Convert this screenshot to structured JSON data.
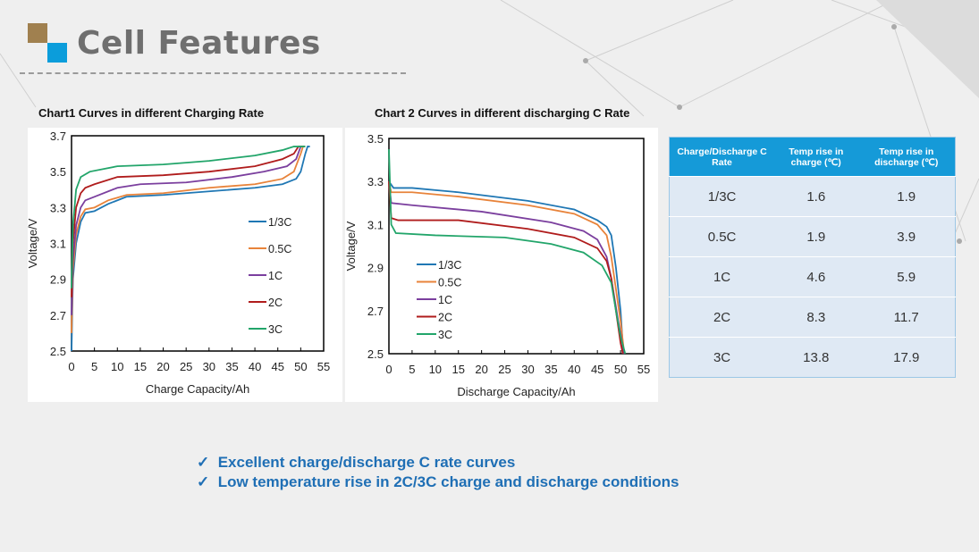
{
  "title": "Cell Features",
  "chart_data": [
    {
      "type": "line",
      "title": "Chart1  Curves in different Charging Rate",
      "xlabel": "Charge Capacity/Ah",
      "ylabel": "Voltage/V",
      "xlim": [
        0,
        55
      ],
      "ylim": [
        2.5,
        3.7
      ],
      "xticks": [
        "0",
        "5",
        "10",
        "15",
        "20",
        "25",
        "30",
        "35",
        "40",
        "45",
        "50",
        "55"
      ],
      "yticks": [
        "3.7",
        "3.5",
        "3.3",
        "3.1",
        "2.9",
        "2.7",
        "2.5"
      ],
      "legend": "center-right",
      "series": [
        {
          "name": "1/3C",
          "color": "#1f77b4",
          "points": [
            [
              0,
              2.5
            ],
            [
              0.3,
              2.9
            ],
            [
              1,
              3.1
            ],
            [
              2,
              3.22
            ],
            [
              3,
              3.27
            ],
            [
              5,
              3.28
            ],
            [
              8,
              3.32
            ],
            [
              12,
              3.36
            ],
            [
              20,
              3.37
            ],
            [
              30,
              3.39
            ],
            [
              40,
              3.41
            ],
            [
              46,
              3.43
            ],
            [
              49,
              3.46
            ],
            [
              50,
              3.5
            ],
            [
              51,
              3.6
            ],
            [
              51.5,
              3.64
            ],
            [
              52,
              3.64
            ]
          ]
        },
        {
          "name": "0.5C",
          "color": "#e8833a",
          "points": [
            [
              0,
              2.6
            ],
            [
              0.3,
              2.95
            ],
            [
              1,
              3.15
            ],
            [
              2,
              3.25
            ],
            [
              3,
              3.29
            ],
            [
              5,
              3.3
            ],
            [
              8,
              3.34
            ],
            [
              12,
              3.37
            ],
            [
              20,
              3.38
            ],
            [
              30,
              3.41
            ],
            [
              40,
              3.43
            ],
            [
              46,
              3.46
            ],
            [
              48.5,
              3.5
            ],
            [
              50,
              3.6
            ],
            [
              50.5,
              3.64
            ],
            [
              51,
              3.64
            ]
          ]
        },
        {
          "name": "1C",
          "color": "#7b3f9e",
          "points": [
            [
              0,
              2.7
            ],
            [
              0.3,
              3.0
            ],
            [
              1,
              3.2
            ],
            [
              2,
              3.3
            ],
            [
              3,
              3.34
            ],
            [
              5,
              3.36
            ],
            [
              10,
              3.41
            ],
            [
              15,
              3.43
            ],
            [
              25,
              3.44
            ],
            [
              35,
              3.47
            ],
            [
              42,
              3.5
            ],
            [
              47,
              3.53
            ],
            [
              49,
              3.57
            ],
            [
              50,
              3.64
            ]
          ]
        },
        {
          "name": "2C",
          "color": "#b01c1c",
          "points": [
            [
              0,
              2.8
            ],
            [
              0.3,
              3.1
            ],
            [
              1,
              3.3
            ],
            [
              2,
              3.38
            ],
            [
              3,
              3.41
            ],
            [
              5,
              3.43
            ],
            [
              10,
              3.47
            ],
            [
              20,
              3.48
            ],
            [
              30,
              3.5
            ],
            [
              40,
              3.53
            ],
            [
              46,
              3.57
            ],
            [
              48.5,
              3.6
            ],
            [
              49.5,
              3.64
            ],
            [
              51,
              3.64
            ]
          ]
        },
        {
          "name": "3C",
          "color": "#22a56a",
          "points": [
            [
              0,
              2.85
            ],
            [
              0.3,
              3.2
            ],
            [
              1,
              3.4
            ],
            [
              2,
              3.47
            ],
            [
              4,
              3.5
            ],
            [
              10,
              3.53
            ],
            [
              20,
              3.54
            ],
            [
              30,
              3.56
            ],
            [
              40,
              3.59
            ],
            [
              46,
              3.62
            ],
            [
              48.5,
              3.64
            ],
            [
              51,
              3.64
            ]
          ]
        }
      ]
    },
    {
      "type": "line",
      "title": "Chart 2  Curves in different discharging C Rate",
      "xlabel": "Discharge Capacity/Ah",
      "ylabel": "Voltage/V",
      "xlim": [
        0,
        55
      ],
      "ylim": [
        2.5,
        3.5
      ],
      "xticks": [
        "0",
        "5",
        "10",
        "15",
        "20",
        "25",
        "30",
        "35",
        "40",
        "45",
        "50",
        "55"
      ],
      "yticks": [
        "3.5",
        "3.3",
        "3.1",
        "2.9",
        "2.7",
        "2.5"
      ],
      "legend": "bottom-left",
      "series": [
        {
          "name": "1/3C",
          "color": "#1f77b4",
          "points": [
            [
              0,
              3.3
            ],
            [
              1,
              3.27
            ],
            [
              5,
              3.27
            ],
            [
              15,
              3.25
            ],
            [
              30,
              3.21
            ],
            [
              40,
              3.17
            ],
            [
              45,
              3.12
            ],
            [
              47,
              3.09
            ],
            [
              48,
              3.05
            ],
            [
              49,
              2.9
            ],
            [
              50,
              2.7
            ],
            [
              50.6,
              2.5
            ]
          ]
        },
        {
          "name": "0.5C",
          "color": "#e8833a",
          "points": [
            [
              0,
              3.3
            ],
            [
              0.5,
              3.25
            ],
            [
              5,
              3.25
            ],
            [
              15,
              3.23
            ],
            [
              30,
              3.19
            ],
            [
              40,
              3.15
            ],
            [
              45,
              3.1
            ],
            [
              47,
              3.05
            ],
            [
              48,
              2.95
            ],
            [
              49,
              2.8
            ],
            [
              50,
              2.65
            ],
            [
              50.8,
              2.5
            ]
          ]
        },
        {
          "name": "1C",
          "color": "#7b3f9e",
          "points": [
            [
              0,
              3.3
            ],
            [
              0.5,
              3.2
            ],
            [
              5,
              3.19
            ],
            [
              20,
              3.16
            ],
            [
              35,
              3.11
            ],
            [
              42,
              3.07
            ],
            [
              45,
              3.03
            ],
            [
              47,
              2.95
            ],
            [
              48,
              2.85
            ],
            [
              49.5,
              2.65
            ],
            [
              50.8,
              2.5
            ]
          ]
        },
        {
          "name": "2C",
          "color": "#b01c1c",
          "points": [
            [
              0,
              3.3
            ],
            [
              0.5,
              3.13
            ],
            [
              2,
              3.12
            ],
            [
              15,
              3.12
            ],
            [
              30,
              3.08
            ],
            [
              40,
              3.04
            ],
            [
              45,
              2.99
            ],
            [
              47,
              2.93
            ],
            [
              48,
              2.85
            ],
            [
              49,
              2.7
            ],
            [
              50,
              2.55
            ],
            [
              50.5,
              2.5
            ]
          ]
        },
        {
          "name": "3C",
          "color": "#22a56a",
          "points": [
            [
              0,
              3.45
            ],
            [
              0.5,
              3.1
            ],
            [
              1.5,
              3.06
            ],
            [
              10,
              3.05
            ],
            [
              25,
              3.04
            ],
            [
              35,
              3.01
            ],
            [
              42,
              2.97
            ],
            [
              46,
              2.91
            ],
            [
              48,
              2.83
            ],
            [
              49,
              2.7
            ],
            [
              50,
              2.58
            ],
            [
              51,
              2.5
            ]
          ]
        }
      ]
    }
  ],
  "table": {
    "headers": [
      "Charge/Discharge C Rate",
      "Temp rise in charge (℃)",
      "Temp rise in discharge  (℃)"
    ],
    "rows": [
      [
        "1/3C",
        "1.6",
        "1.9"
      ],
      [
        "0.5C",
        "1.9",
        "3.9"
      ],
      [
        "1C",
        "4.6",
        "5.9"
      ],
      [
        "2C",
        "8.3",
        "11.7"
      ],
      [
        "3C",
        "13.8",
        "17.9"
      ]
    ]
  },
  "bullets": [
    "Excellent charge/discharge  C rate curves",
    "Low temperature rise in 2C/3C charge and discharge conditions"
  ],
  "check_glyph": "✓"
}
